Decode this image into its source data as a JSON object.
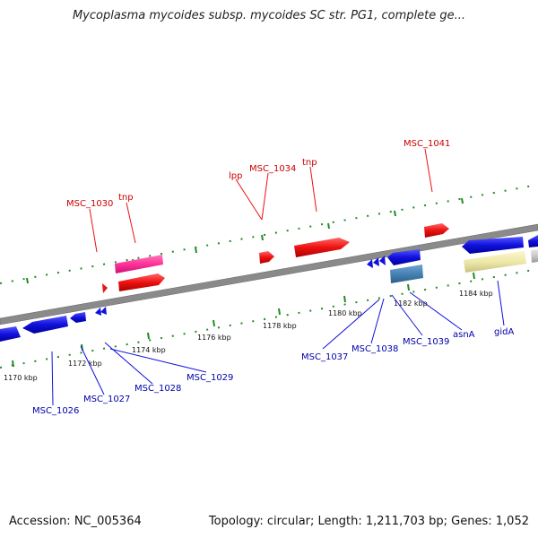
{
  "header": {
    "title": "Mycoplasma mycoides subsp. mycoides SC str. PG1, complete ge..."
  },
  "footer": {
    "accession": "Accession: NC_005364",
    "summary": "Topology: circular; Length: 1,211,703 bp; Genes: 1,052"
  },
  "axis_labels": [
    "1170 kbp",
    "1172 kbp",
    "1174 kbp",
    "1176 kbp",
    "1178 kbp",
    "1180 kbp",
    "1182 kbp",
    "1184 kbp"
  ],
  "gene_labels_top": [
    "MSC_1030",
    "tnp",
    "lpp",
    "MSC_1034",
    "tnp",
    "MSC_1041"
  ],
  "gene_labels_bottom": [
    "MSC_1026",
    "MSC_1027",
    "MSC_1028",
    "MSC_1029",
    "MSC_1037",
    "MSC_1038",
    "MSC_1039",
    "asnA",
    "gidA"
  ],
  "colors": {
    "backbone": "#888888",
    "forward_gene": "#ee1111",
    "reverse_gene": "#1111dd",
    "pink_feature": "#ff3399",
    "teal_feature": "#4682b4",
    "yellow_feature": "#eee8aa",
    "gray_feature": "#c8c8c8",
    "tick": "#228b22",
    "top_label": "#cc0000",
    "bottom_label": "#0000aa"
  }
}
